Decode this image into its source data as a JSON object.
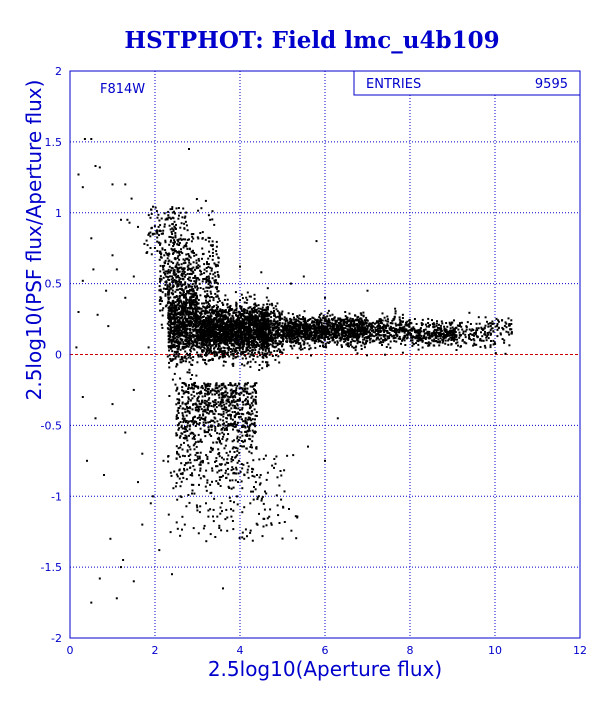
{
  "chart_data": {
    "type": "scatter",
    "title": "HSTPHOT: Field lmc_u4b109",
    "xlabel": "2.5log10(Aperture flux)",
    "ylabel": "2.5log10(PSF flux/Aperture flux)",
    "xlim": [
      0,
      12
    ],
    "ylim": [
      -2,
      2
    ],
    "xticks": [
      "0",
      "2",
      "4",
      "6",
      "8",
      "10",
      "12"
    ],
    "yticks": [
      "-2",
      "-1.5",
      "-1",
      "-0.5",
      "0",
      "0.5",
      "1",
      "1.5",
      "2"
    ],
    "filter_label": "F814W",
    "stats": {
      "label": "ENTRIES",
      "value": "9595"
    },
    "reference_line_y": 0,
    "grid": true,
    "colors": {
      "text": "#0000cc",
      "points": "#000000",
      "reference_line": "#cc0000",
      "grid": "#0000cc"
    },
    "series": [
      {
        "points": [
          [
            0.2,
            1.27
          ],
          [
            0.35,
            1.52
          ],
          [
            0.5,
            1.52
          ],
          [
            0.6,
            1.33
          ],
          [
            0.7,
            1.32
          ],
          [
            0.3,
            1.18
          ],
          [
            1.0,
            1.2
          ],
          [
            1.3,
            1.2
          ],
          [
            1.45,
            1.1
          ],
          [
            1.35,
            0.95
          ],
          [
            1.4,
            0.93
          ],
          [
            1.6,
            0.9
          ],
          [
            1.75,
            0.78
          ],
          [
            0.5,
            0.82
          ],
          [
            1.0,
            0.7
          ],
          [
            0.3,
            0.52
          ],
          [
            0.55,
            0.6
          ],
          [
            0.85,
            0.45
          ],
          [
            0.2,
            0.3
          ],
          [
            0.65,
            0.28
          ],
          [
            0.9,
            0.2
          ],
          [
            1.1,
            0.6
          ],
          [
            1.3,
            0.4
          ],
          [
            1.5,
            0.55
          ],
          [
            0.3,
            -0.3
          ],
          [
            0.6,
            -0.45
          ],
          [
            1.0,
            -0.35
          ],
          [
            1.3,
            -0.55
          ],
          [
            1.5,
            -0.25
          ],
          [
            1.7,
            -0.7
          ],
          [
            0.8,
            -0.85
          ],
          [
            1.6,
            -0.9
          ],
          [
            1.9,
            -1.05
          ],
          [
            2.2,
            -0.75
          ],
          [
            0.95,
            -1.3
          ],
          [
            1.25,
            -1.45
          ],
          [
            0.7,
            -1.58
          ],
          [
            1.5,
            -1.6
          ],
          [
            0.5,
            -1.75
          ],
          [
            1.1,
            -1.72
          ],
          [
            1.2,
            -1.5
          ],
          [
            2.1,
            -1.38
          ],
          [
            2.4,
            -1.55
          ],
          [
            3.6,
            -1.65
          ],
          [
            1.7,
            -1.2
          ],
          [
            1.95,
            -1.0
          ],
          [
            2.7,
            -1.2
          ],
          [
            0.4,
            -0.75
          ],
          [
            0.15,
            0.05
          ],
          [
            1.85,
            0.05
          ],
          [
            4.0,
            0.62
          ],
          [
            4.5,
            0.58
          ],
          [
            5.2,
            0.5
          ],
          [
            6.0,
            0.4
          ],
          [
            6.3,
            -0.45
          ],
          [
            5.6,
            -0.65
          ],
          [
            6.0,
            -0.75
          ],
          [
            4.4,
            -0.85
          ],
          [
            4.1,
            -1.3
          ],
          [
            3.7,
            -1.15
          ],
          [
            3.2,
            -1.05
          ],
          [
            2.6,
            -1.0
          ],
          [
            2.9,
            -0.92
          ],
          [
            4.8,
            -0.8
          ],
          [
            5.8,
            0.8
          ],
          [
            5.5,
            0.55
          ],
          [
            7.0,
            0.45
          ],
          [
            3.3,
            0.95
          ],
          [
            2.9,
            0.85
          ],
          [
            2.6,
            1.0
          ],
          [
            2.8,
            1.45
          ],
          [
            1.2,
            0.95
          ]
        ]
      }
    ]
  }
}
